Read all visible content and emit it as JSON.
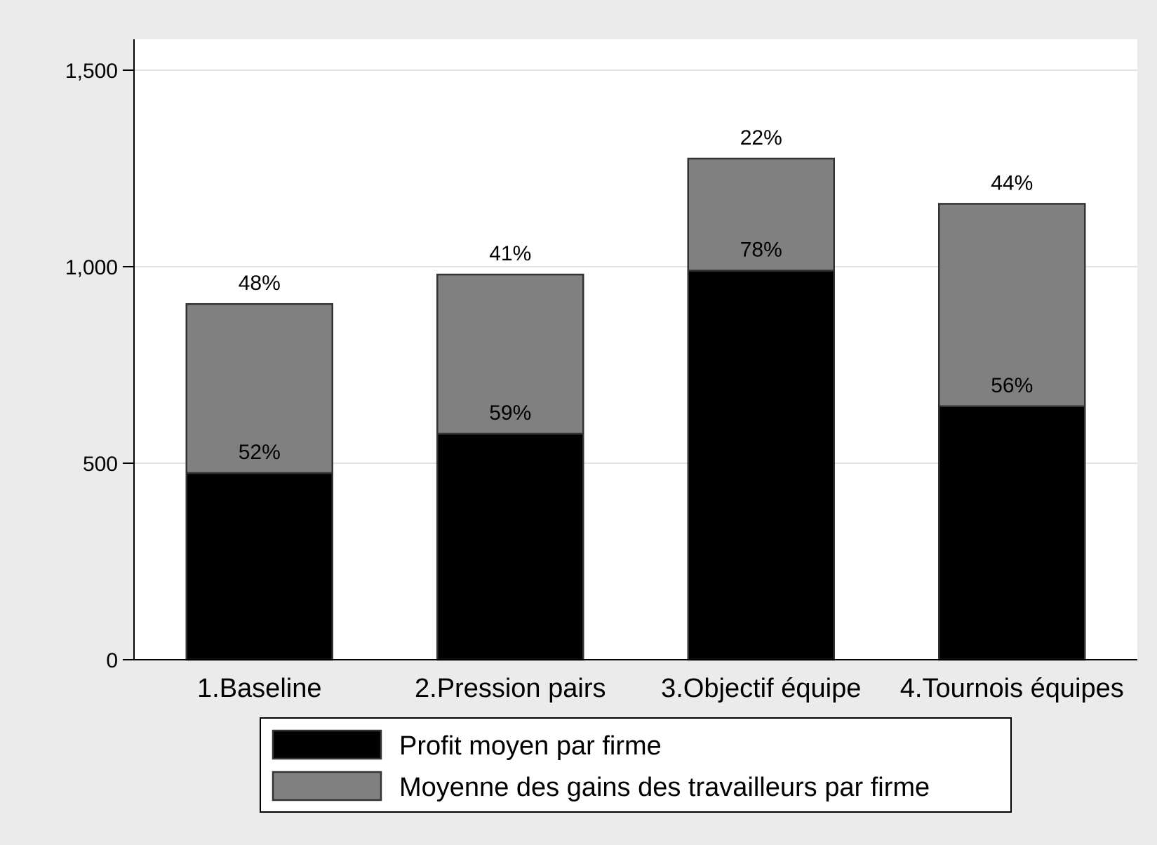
{
  "chart_data": {
    "type": "bar",
    "stacked": true,
    "title": "",
    "xlabel": "",
    "ylabel": "",
    "ylim": [
      0,
      1575
    ],
    "yticks": [
      0,
      500,
      1000,
      1500
    ],
    "ytick_labels": [
      "0",
      "500",
      "1,000",
      "1,500"
    ],
    "grid": true,
    "legend_position": "bottom",
    "categories": [
      "1.Baseline",
      "2.Pression pairs",
      "3.Objectif équipe",
      "4.Tournois équipes"
    ],
    "series": [
      {
        "name": "Profit moyen par firme",
        "color": "#000000",
        "values": [
          475,
          575,
          990,
          645
        ],
        "labels": [
          "52%",
          "59%",
          "78%",
          "56%"
        ]
      },
      {
        "name": "Moyenne des gains des travailleurs par firme",
        "color": "#808080",
        "values": [
          430,
          405,
          285,
          515
        ],
        "labels": [
          "48%",
          "41%",
          "22%",
          "44%"
        ]
      }
    ]
  }
}
